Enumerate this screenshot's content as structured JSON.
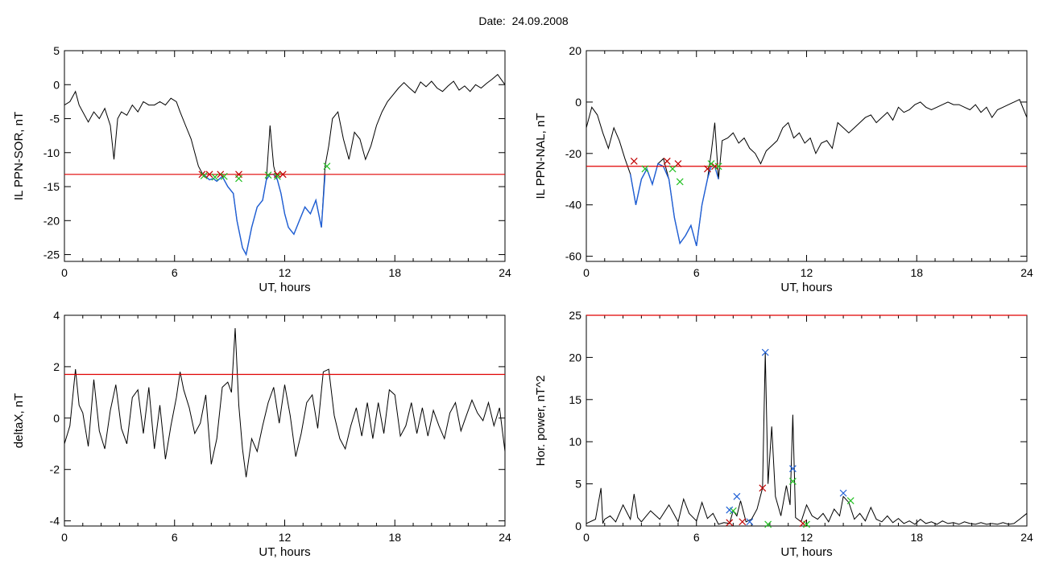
{
  "header": {
    "title": "Date:  24.09.2008"
  },
  "colors": {
    "line": "#000000",
    "threshold": "#e00000",
    "highlight": "#1f5fd6",
    "marker_red": "#c00000",
    "marker_green": "#22c022",
    "marker_blue": "#1f5fd6"
  },
  "chart_data": [
    {
      "type": "line",
      "title": "",
      "xlabel": "UT, hours",
      "ylabel": "IL PPN-SOR, nT",
      "xlim": [
        0,
        24
      ],
      "ylim": [
        -26,
        5
      ],
      "x_ticks": [
        0,
        6,
        12,
        18,
        24
      ],
      "y_ticks": [
        5,
        0,
        -5,
        -10,
        -15,
        -20,
        -25
      ],
      "threshold": -13.2,
      "series": [
        {
          "x": [
            0,
            0.3,
            0.6,
            0.8,
            1.0,
            1.3,
            1.6,
            1.9,
            2.2,
            2.5,
            2.7,
            2.9,
            3.1,
            3.4,
            3.7,
            4.0,
            4.3,
            4.6,
            4.9,
            5.2,
            5.5,
            5.8,
            6.1,
            6.3,
            6.6,
            6.9,
            7.1,
            7.3,
            7.5,
            7.7,
            7.9,
            8.1,
            8.3,
            8.6,
            8.9,
            9.2,
            9.4,
            9.7,
            9.9,
            10.2,
            10.5,
            10.8,
            11.0,
            11.2,
            11.4,
            11.6,
            11.8,
            12.0,
            12.2,
            12.5,
            12.8,
            13.1,
            13.4,
            13.7,
            14.0,
            14.2,
            14.4,
            14.6,
            14.9,
            15.2,
            15.5,
            15.8,
            16.1,
            16.4,
            16.7,
            17.0,
            17.3,
            17.6,
            17.9,
            18.2,
            18.5,
            18.8,
            19.1,
            19.4,
            19.7,
            20.0,
            20.3,
            20.6,
            20.9,
            21.2,
            21.5,
            21.8,
            22.1,
            22.4,
            22.7,
            23.0,
            23.3,
            23.6,
            24.0
          ],
          "y": [
            -3,
            -2.5,
            -1,
            -3,
            -4,
            -5.5,
            -4,
            -5,
            -3.5,
            -6,
            -11,
            -5,
            -4,
            -4.5,
            -3,
            -4,
            -2.5,
            -3,
            -3,
            -2.5,
            -3,
            -2,
            -2.5,
            -4,
            -6,
            -8,
            -10,
            -12,
            -13,
            -13.5,
            -14,
            -13.8,
            -14.2,
            -13.5,
            -15,
            -16,
            -20,
            -24,
            -25,
            -21,
            -18,
            -17,
            -14,
            -6,
            -12,
            -14,
            -16,
            -19,
            -21,
            -22,
            -20,
            -18,
            -19,
            -17,
            -21,
            -12,
            -9,
            -5,
            -4,
            -8,
            -11,
            -7,
            -8,
            -11,
            -9,
            -6,
            -4,
            -2.5,
            -1.5,
            -0.5,
            0.3,
            -0.5,
            -1.2,
            0.4,
            -0.3,
            0.5,
            -0.5,
            -1,
            -0.2,
            0.5,
            -0.8,
            -0.2,
            -1,
            0,
            -0.5,
            0.2,
            0.8,
            1.5,
            0
          ]
        },
        {
          "x": [
            7.5,
            7.7,
            7.9,
            8.1,
            8.3,
            8.6,
            8.9,
            9.2,
            9.4,
            9.7,
            9.9,
            10.2,
            10.5,
            10.8,
            11.0,
            11.2,
            11.4,
            11.6,
            11.8,
            12.0,
            12.2,
            12.5,
            12.8,
            13.1,
            13.4,
            13.7,
            14.0,
            14.2
          ],
          "y": [
            -13,
            -13.5,
            -14,
            -13.8,
            -14.2,
            -13.5,
            -15,
            -16,
            -20,
            -24,
            -25,
            -21,
            -18,
            -17,
            -14,
            -13.2,
            -13.2,
            -14,
            -16,
            -19,
            -21,
            -22,
            -20,
            -18,
            -19,
            -17,
            -21,
            -13.2
          ]
        }
      ],
      "markers_red": [
        [
          7.5,
          -13.2
        ],
        [
          7.9,
          -13.2
        ],
        [
          8.5,
          -13.2
        ],
        [
          9.5,
          -13.2
        ],
        [
          11.6,
          -13.2
        ],
        [
          11.9,
          -13.2
        ]
      ],
      "markers_green": [
        [
          7.6,
          -13.4
        ],
        [
          8.2,
          -13.6
        ],
        [
          8.7,
          -13.5
        ],
        [
          9.5,
          -13.8
        ],
        [
          11.1,
          -13.3
        ],
        [
          11.6,
          -13.5
        ],
        [
          14.3,
          -12
        ]
      ]
    },
    {
      "type": "line",
      "title": "",
      "xlabel": "UT, hours",
      "ylabel": "IL PPN-NAL, nT",
      "xlim": [
        0,
        24
      ],
      "ylim": [
        -62,
        20
      ],
      "x_ticks": [
        0,
        6,
        12,
        18,
        24
      ],
      "y_ticks": [
        20,
        0,
        -20,
        -40,
        -60
      ],
      "threshold": -25,
      "series": [
        {
          "x": [
            0,
            0.3,
            0.6,
            0.9,
            1.2,
            1.5,
            1.8,
            2.1,
            2.4,
            2.7,
            3.0,
            3.3,
            3.6,
            3.9,
            4.2,
            4.5,
            4.8,
            5.1,
            5.4,
            5.7,
            6.0,
            6.3,
            6.6,
            6.8,
            7.0,
            7.2,
            7.4,
            7.7,
            8.0,
            8.3,
            8.6,
            8.9,
            9.2,
            9.5,
            9.8,
            10.1,
            10.4,
            10.7,
            11.0,
            11.3,
            11.6,
            11.9,
            12.2,
            12.5,
            12.8,
            13.1,
            13.4,
            13.7,
            14.0,
            14.3,
            14.6,
            14.9,
            15.2,
            15.5,
            15.8,
            16.1,
            16.4,
            16.7,
            17.0,
            17.3,
            17.6,
            17.9,
            18.2,
            18.5,
            18.8,
            19.1,
            19.4,
            19.7,
            20.0,
            20.3,
            20.6,
            20.9,
            21.2,
            21.5,
            21.8,
            22.1,
            22.4,
            22.7,
            23.0,
            23.3,
            23.6,
            24.0
          ],
          "y": [
            -10,
            -2,
            -5,
            -12,
            -18,
            -10,
            -15,
            -22,
            -28,
            -40,
            -30,
            -26,
            -32,
            -24,
            -22,
            -30,
            -45,
            -55,
            -52,
            -48,
            -56,
            -40,
            -30,
            -20,
            -8,
            -30,
            -15,
            -14,
            -12,
            -16,
            -14,
            -18,
            -20,
            -24,
            -19,
            -17,
            -15,
            -10,
            -8,
            -14,
            -12,
            -16,
            -14,
            -20,
            -16,
            -15,
            -18,
            -8,
            -10,
            -12,
            -10,
            -8,
            -6,
            -5,
            -8,
            -6,
            -4,
            -7,
            -2,
            -4,
            -3,
            -1,
            0,
            -2,
            -3,
            -2,
            -1,
            0,
            -1,
            -1,
            -2,
            -3,
            -1,
            -4,
            -2,
            -6,
            -3,
            -2,
            -1,
            0,
            1,
            -6
          ]
        },
        {
          "x": [
            2.4,
            2.7,
            3.0,
            3.3,
            3.6,
            3.9,
            4.2,
            4.5,
            4.8,
            5.1,
            5.4,
            5.7,
            6.0,
            6.3,
            6.6,
            6.8,
            7.0,
            7.2
          ],
          "y": [
            -28,
            -40,
            -30,
            -26,
            -32,
            -24,
            -25,
            -30,
            -45,
            -55,
            -52,
            -48,
            -56,
            -40,
            -30,
            -25,
            -25,
            -30
          ]
        }
      ],
      "markers_red": [
        [
          2.6,
          -23
        ],
        [
          4.4,
          -23
        ],
        [
          5.0,
          -24
        ],
        [
          6.6,
          -26
        ],
        [
          7.0,
          -25
        ]
      ],
      "markers_green": [
        [
          3.2,
          -26
        ],
        [
          4.7,
          -26
        ],
        [
          5.1,
          -31
        ],
        [
          6.8,
          -24
        ],
        [
          7.2,
          -25
        ]
      ]
    },
    {
      "type": "line",
      "title": "",
      "xlabel": "UT, hours",
      "ylabel": "deltaX, nT",
      "xlim": [
        0,
        24
      ],
      "ylim": [
        -4.2,
        4
      ],
      "x_ticks": [
        0,
        6,
        12,
        18,
        24
      ],
      "y_ticks": [
        4,
        2,
        0,
        -2,
        -4
      ],
      "threshold": 1.7,
      "series": [
        {
          "x": [
            0,
            0.3,
            0.6,
            0.8,
            1.0,
            1.3,
            1.6,
            1.9,
            2.2,
            2.5,
            2.8,
            3.1,
            3.4,
            3.7,
            4.0,
            4.3,
            4.6,
            4.9,
            5.2,
            5.5,
            5.8,
            6.1,
            6.3,
            6.5,
            6.8,
            7.1,
            7.4,
            7.7,
            8.0,
            8.3,
            8.6,
            8.9,
            9.1,
            9.3,
            9.5,
            9.7,
            9.9,
            10.2,
            10.5,
            10.8,
            11.1,
            11.4,
            11.7,
            12.0,
            12.3,
            12.6,
            12.9,
            13.2,
            13.5,
            13.8,
            14.1,
            14.4,
            14.7,
            15.0,
            15.3,
            15.6,
            15.9,
            16.2,
            16.5,
            16.8,
            17.1,
            17.4,
            17.7,
            18.0,
            18.3,
            18.6,
            18.9,
            19.2,
            19.5,
            19.8,
            20.1,
            20.4,
            20.7,
            21.0,
            21.3,
            21.6,
            21.9,
            22.2,
            22.5,
            22.8,
            23.1,
            23.4,
            23.7,
            24.0
          ],
          "y": [
            -1,
            -0.3,
            1.9,
            0.5,
            0.2,
            -1.1,
            1.5,
            -0.5,
            -1.2,
            0.3,
            1.3,
            -0.4,
            -1,
            0.8,
            1.1,
            -0.6,
            1.2,
            -1.2,
            0.5,
            -1.6,
            -0.3,
            0.8,
            1.8,
            1.1,
            0.4,
            -0.6,
            -0.2,
            0.9,
            -1.8,
            -0.8,
            1.2,
            1.4,
            1.0,
            3.5,
            0.5,
            -1.2,
            -2.3,
            -0.8,
            -1.3,
            -0.3,
            0.6,
            1.2,
            -0.2,
            1.3,
            0.1,
            -1.5,
            -0.6,
            0.6,
            0.9,
            -0.4,
            1.8,
            1.9,
            0.1,
            -0.8,
            -1.2,
            -0.3,
            0.4,
            -0.7,
            0.6,
            -0.8,
            0.6,
            -0.6,
            1.1,
            0.9,
            -0.7,
            -0.3,
            0.6,
            -0.6,
            0.4,
            -0.7,
            0.3,
            -0.3,
            -0.8,
            0.2,
            0.6,
            -0.5,
            0.1,
            0.7,
            0.2,
            -0.1,
            0.6,
            -0.3,
            0.4,
            -1.3
          ]
        }
      ],
      "markers_red": [],
      "markers_green": []
    },
    {
      "type": "line",
      "title": "",
      "xlabel": "UT, hours",
      "ylabel": "Hor. power, nT^2",
      "xlim": [
        0,
        24
      ],
      "ylim": [
        0,
        25
      ],
      "x_ticks": [
        0,
        6,
        12,
        18,
        24
      ],
      "y_ticks": [
        25,
        20,
        15,
        10,
        5,
        0
      ],
      "threshold": 25,
      "series": [
        {
          "x": [
            0,
            0.5,
            0.8,
            0.9,
            1.0,
            1.3,
            1.6,
            2.0,
            2.4,
            2.6,
            2.8,
            3.0,
            3.5,
            4.0,
            4.5,
            5.0,
            5.3,
            5.6,
            6.0,
            6.3,
            6.6,
            6.9,
            7.2,
            7.5,
            7.8,
            8.0,
            8.2,
            8.4,
            8.7,
            9.0,
            9.3,
            9.6,
            9.75,
            9.9,
            10.1,
            10.3,
            10.6,
            10.9,
            11.1,
            11.25,
            11.4,
            11.7,
            12.0,
            12.3,
            12.6,
            12.9,
            13.2,
            13.5,
            13.8,
            14.0,
            14.3,
            14.6,
            14.9,
            15.2,
            15.5,
            15.8,
            16.1,
            16.4,
            16.7,
            17.0,
            17.3,
            17.6,
            17.9,
            18.2,
            18.5,
            18.8,
            19.1,
            19.4,
            19.7,
            20.0,
            20.3,
            20.6,
            20.9,
            21.2,
            21.5,
            21.8,
            22.1,
            22.4,
            22.7,
            23.0,
            23.3,
            23.6,
            24.0
          ],
          "y": [
            0.3,
            0.8,
            4.5,
            0.3,
            0.8,
            1.2,
            0.5,
            2.5,
            0.8,
            3.8,
            1.0,
            0.5,
            1.8,
            0.8,
            2.5,
            0.5,
            3.2,
            1.5,
            0.6,
            2.8,
            0.9,
            1.5,
            0.2,
            0.4,
            0.3,
            1.8,
            1.2,
            3.0,
            0.5,
            0.8,
            2.0,
            4.5,
            20.6,
            5.0,
            11.8,
            3.5,
            1.2,
            4.8,
            2.5,
            13.2,
            1.0,
            0.5,
            2.5,
            1.2,
            0.8,
            1.5,
            0.5,
            2.0,
            1.2,
            3.5,
            2.8,
            0.8,
            1.5,
            0.6,
            2.2,
            0.8,
            0.5,
            1.2,
            0.4,
            0.9,
            0.3,
            0.6,
            0.2,
            0.8,
            0.3,
            0.5,
            0.2,
            0.6,
            0.3,
            0.4,
            0.2,
            0.5,
            0.3,
            0.2,
            0.4,
            0.2,
            0.3,
            0.2,
            0.4,
            0.2,
            0.3,
            0.8,
            1.5
          ]
        }
      ],
      "markers_blue": [
        [
          9.75,
          20.6
        ],
        [
          11.25,
          6.8
        ],
        [
          14.0,
          3.9
        ],
        [
          8.2,
          3.5
        ],
        [
          7.8,
          1.9
        ],
        [
          8.9,
          0.5
        ]
      ],
      "markers_red": [
        [
          9.6,
          4.5
        ],
        [
          7.8,
          0.4
        ],
        [
          8.5,
          0.5
        ],
        [
          11.8,
          0.3
        ]
      ],
      "markers_green": [
        [
          11.25,
          5.3
        ],
        [
          8.0,
          1.8
        ],
        [
          9.9,
          0.2
        ],
        [
          14.4,
          3.0
        ],
        [
          12.0,
          0.2
        ]
      ]
    }
  ]
}
